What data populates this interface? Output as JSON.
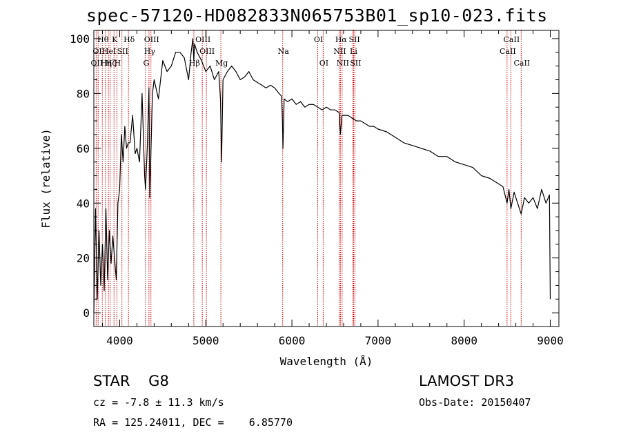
{
  "chart_data": {
    "type": "line",
    "title": "spec-57120-HD082833N065753B01_sp10-023.fits",
    "xlabel": "Wavelength (Å)",
    "ylabel": "Flux (relative)",
    "xlim": [
      3700,
      9100
    ],
    "ylim": [
      -5,
      103
    ],
    "xticks": [
      4000,
      5000,
      6000,
      7000,
      8000,
      9000
    ],
    "yticks": [
      0,
      20,
      40,
      60,
      80,
      100
    ],
    "series": [
      {
        "name": "spectrum",
        "x": [
          3700,
          3720,
          3740,
          3760,
          3780,
          3800,
          3820,
          3840,
          3860,
          3880,
          3900,
          3920,
          3940,
          3960,
          3980,
          4000,
          4020,
          4040,
          4060,
          4080,
          4100,
          4120,
          4150,
          4180,
          4200,
          4230,
          4260,
          4290,
          4300,
          4320,
          4340,
          4350,
          4380,
          4400,
          4450,
          4500,
          4550,
          4600,
          4650,
          4700,
          4750,
          4800,
          4830,
          4850,
          4861,
          4870,
          4900,
          4950,
          5000,
          5050,
          5100,
          5150,
          5170,
          5183,
          5200,
          5250,
          5300,
          5350,
          5400,
          5450,
          5500,
          5550,
          5600,
          5650,
          5700,
          5750,
          5800,
          5850,
          5880,
          5890,
          5896,
          5910,
          5950,
          6000,
          6050,
          6100,
          6150,
          6200,
          6250,
          6300,
          6350,
          6400,
          6450,
          6500,
          6550,
          6563,
          6580,
          6600,
          6650,
          6700,
          6750,
          6800,
          6850,
          6900,
          6950,
          7000,
          7100,
          7200,
          7300,
          7400,
          7500,
          7600,
          7700,
          7800,
          7900,
          8000,
          8100,
          8200,
          8300,
          8400,
          8450,
          8498,
          8520,
          8542,
          8580,
          8600,
          8662,
          8700,
          8750,
          8800,
          8850,
          8900,
          8950,
          8990,
          9000
        ],
        "values": [
          0,
          38,
          5,
          30,
          10,
          25,
          8,
          38,
          12,
          30,
          18,
          28,
          20,
          12,
          40,
          45,
          65,
          55,
          68,
          60,
          62,
          62,
          72,
          58,
          60,
          55,
          80,
          50,
          45,
          60,
          82,
          42,
          80,
          85,
          78,
          92,
          88,
          90,
          95,
          95,
          93,
          85,
          95,
          100,
          92,
          98,
          95,
          92,
          88,
          90,
          85,
          88,
          78,
          55,
          85,
          88,
          90,
          88,
          85,
          86,
          88,
          85,
          84,
          83,
          82,
          83,
          82,
          80,
          79,
          70,
          60,
          78,
          77,
          78,
          76,
          77,
          75,
          76,
          76,
          75,
          74,
          75,
          74,
          74,
          73,
          65,
          72,
          72,
          72,
          71,
          70,
          70,
          69,
          68,
          68,
          67,
          66,
          64,
          62,
          61,
          60,
          59,
          57,
          57,
          55,
          54,
          53,
          50,
          49,
          47,
          46,
          40,
          45,
          38,
          44,
          42,
          36,
          42,
          40,
          42,
          38,
          45,
          40,
          43,
          5
        ]
      }
    ],
    "lines": [
      {
        "wl": 3727,
        "label": "OII",
        "row": 2
      },
      {
        "wl": 3750,
        "label": "OII",
        "row": 1
      },
      {
        "wl": 3798,
        "label": "Hθ",
        "row": 0
      },
      {
        "wl": 3835,
        "label": "Hη",
        "row": 2
      },
      {
        "wl": 3869,
        "label": "HeI",
        "row": 1
      },
      {
        "wl": 3889,
        "label": "Hζ",
        "row": 2
      },
      {
        "wl": 3934,
        "label": "K",
        "row": 0
      },
      {
        "wl": 3968,
        "label": "H",
        "row": 2
      },
      {
        "wl": 4026,
        "label": "SII",
        "row": 1
      },
      {
        "wl": 4102,
        "label": "Hδ",
        "row": 0
      },
      {
        "wl": 4300,
        "label": "G",
        "row": 2
      },
      {
        "wl": 4340,
        "label": "Hγ",
        "row": 1
      },
      {
        "wl": 4363,
        "label": "OIII",
        "row": 0
      },
      {
        "wl": 4861,
        "label": "Hβ",
        "row": 2
      },
      {
        "wl": 4959,
        "label": "OIII",
        "row": 0
      },
      {
        "wl": 5007,
        "label": "OIII",
        "row": 1
      },
      {
        "wl": 5175,
        "label": "Mg",
        "row": 2
      },
      {
        "wl": 5893,
        "label": "Na",
        "row": 1
      },
      {
        "wl": 6300,
        "label": "OI",
        "row": 0
      },
      {
        "wl": 6363,
        "label": "OI",
        "row": 2
      },
      {
        "wl": 6548,
        "label": "NII",
        "row": 1
      },
      {
        "wl": 6563,
        "label": "Hα",
        "row": 0
      },
      {
        "wl": 6583,
        "label": "NII",
        "row": 2
      },
      {
        "wl": 6708,
        "label": "Li",
        "row": 1
      },
      {
        "wl": 6717,
        "label": "SII",
        "row": 0
      },
      {
        "wl": 6731,
        "label": "SII",
        "row": 2
      },
      {
        "wl": 8498,
        "label": "CaII",
        "row": 1
      },
      {
        "wl": 8542,
        "label": "CaII",
        "row": 0
      },
      {
        "wl": 8662,
        "label": "CaII",
        "row": 2
      }
    ],
    "line_color": "#cc0000",
    "spectrum_color": "#000000"
  },
  "footer": {
    "object": "STAR    G8",
    "survey": "LAMOST DR3",
    "redshift": "cz = -7.8 ± 11.3 km/s",
    "obs_date": "Obs-Date: 20150407",
    "coords": "RA = 125.24011, DEC =    6.85770"
  }
}
